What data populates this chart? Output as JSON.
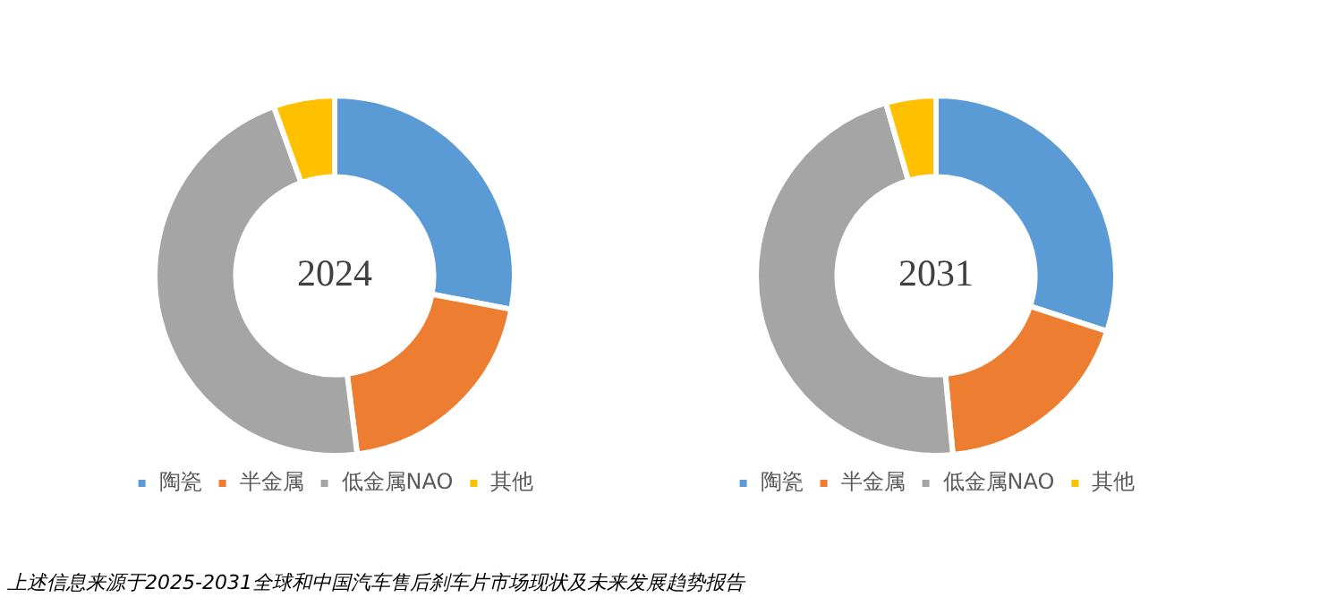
{
  "chart_data": [
    {
      "type": "donut",
      "title": "2024",
      "categories": [
        "陶瓷",
        "半金属",
        "低金属NAO",
        "其他"
      ],
      "values": [
        28,
        20,
        46.5,
        5.5
      ],
      "colors": [
        "#5b9bd5",
        "#ed7d31",
        "#a5a5a5",
        "#ffc000"
      ],
      "legend": "bottom",
      "annotations": [
        "上述信息来源于2025-2031全球和中国汽车售后刹车片市场现状及未来发展趋势报告"
      ]
    },
    {
      "type": "donut",
      "title": "2031",
      "categories": [
        "陶瓷",
        "半金属",
        "低金属NAO",
        "其他"
      ],
      "values": [
        30,
        18.5,
        47,
        4.5
      ],
      "colors": [
        "#5b9bd5",
        "#ed7d31",
        "#a5a5a5",
        "#ffc000"
      ],
      "legend": "bottom"
    }
  ]
}
